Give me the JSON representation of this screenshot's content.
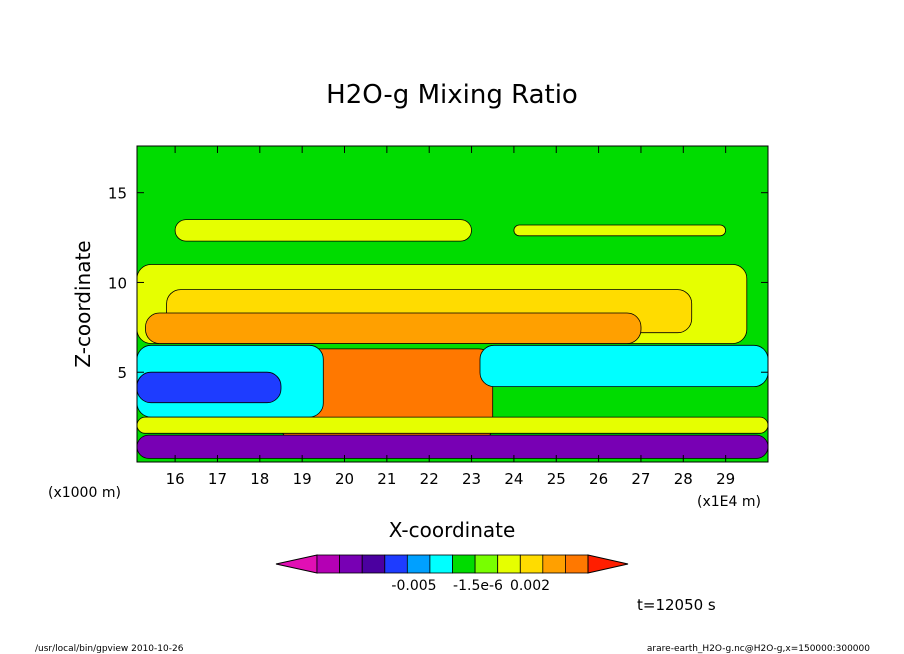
{
  "chart_data": {
    "type": "heatmap",
    "title": "H2O-g Mixing Ratio",
    "xlabel": "X-coordinate",
    "ylabel": "Z-coordinate",
    "x_unit_left": "(x1000 m)",
    "x_unit_right": "(x1E4 m)",
    "x_ticks": [
      16,
      17,
      18,
      19,
      20,
      21,
      22,
      23,
      24,
      25,
      26,
      27,
      28,
      29
    ],
    "y_ticks": [
      5,
      10,
      15
    ],
    "xlim": [
      15.1,
      30.0
    ],
    "ylim": [
      0,
      17.6
    ],
    "colorbar": {
      "colors": [
        "#e10fb4",
        "#b400b4",
        "#7800b4",
        "#4b00a0",
        "#1e3cff",
        "#00a0ff",
        "#00ffff",
        "#00dc00",
        "#78ff00",
        "#e6ff00",
        "#ffdc00",
        "#ffa000",
        "#ff7800",
        "#ff1e00"
      ],
      "tick_labels": [
        "-0.005",
        "-1.5e-6",
        "0.002"
      ]
    },
    "layers": [
      {
        "name": "high-layer",
        "color": "#e6ff00",
        "ranges": [
          [
            16.0,
            23.0,
            13.5,
            12.3
          ],
          [
            24.0,
            29.0,
            13.2,
            12.6
          ]
        ]
      },
      {
        "name": "anvil-yellow",
        "color": "#e6ff00",
        "ranges": [
          [
            15.1,
            29.5,
            11.0,
            6.6
          ]
        ]
      },
      {
        "name": "anvil-gold",
        "color": "#ffdc00",
        "ranges": [
          [
            15.8,
            28.2,
            9.6,
            7.2
          ]
        ]
      },
      {
        "name": "anvil-orange",
        "color": "#ffa000",
        "ranges": [
          [
            15.3,
            27.0,
            8.3,
            6.6
          ]
        ]
      },
      {
        "name": "core",
        "color": "#ff7800",
        "ranges": [
          [
            18.5,
            23.5,
            6.3,
            1.2
          ]
        ]
      },
      {
        "name": "left-cyan",
        "color": "#00ffff",
        "ranges": [
          [
            15.1,
            19.5,
            6.5,
            2.5
          ],
          [
            23.2,
            30.0,
            6.5,
            4.2
          ]
        ]
      },
      {
        "name": "left-blue",
        "color": "#1e3cff",
        "ranges": [
          [
            15.1,
            18.5,
            5.0,
            3.3
          ]
        ]
      },
      {
        "name": "lower-yellow",
        "color": "#e6ff00",
        "ranges": [
          [
            15.1,
            30.0,
            2.5,
            1.6
          ]
        ]
      },
      {
        "name": "surface-purple",
        "color": "#7800b4",
        "ranges": [
          [
            15.1,
            30.0,
            1.5,
            0.2
          ]
        ]
      }
    ]
  },
  "annotation_time": "t=12050 s",
  "footer_left": "/usr/local/bin/gpview  2010-10-26",
  "footer_right": "arare-earth_H2O-g.nc@H2O-g,x=150000:300000"
}
